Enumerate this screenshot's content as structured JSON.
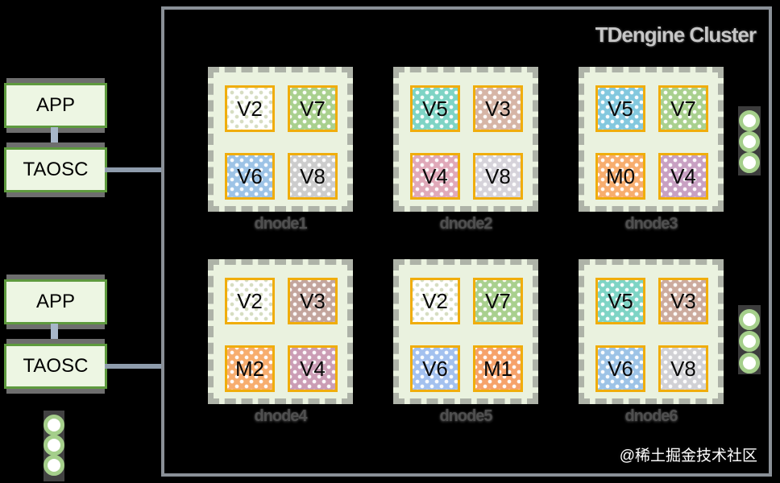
{
  "title": "TDengine Cluster",
  "watermark": "@稀土掘金技术社区",
  "left": {
    "pairs": [
      {
        "app": "APP",
        "taosc": "TAOSC"
      },
      {
        "app": "APP",
        "taosc": "TAOSC"
      }
    ]
  },
  "cluster": {
    "dnodes": [
      {
        "label": "dnode1",
        "cells": [
          {
            "label": "V2",
            "color": "#ffffff",
            "dot": "#d6ddc2"
          },
          {
            "label": "V7",
            "color": "#a9d08e"
          },
          {
            "label": "V6",
            "color": "#9dc3e6"
          },
          {
            "label": "V8",
            "color": "#cccccc"
          }
        ]
      },
      {
        "label": "dnode2",
        "cells": [
          {
            "label": "V5",
            "color": "#7ed4c5"
          },
          {
            "label": "V3",
            "color": "#d6b5a6"
          },
          {
            "label": "V4",
            "color": "#e0a9b9"
          },
          {
            "label": "V8",
            "color": "#d6d3da"
          }
        ]
      },
      {
        "label": "dnode3",
        "cells": [
          {
            "label": "V5",
            "color": "#83c8de"
          },
          {
            "label": "V7",
            "color": "#a9d08e"
          },
          {
            "label": "M0",
            "color": "#f7ad6e"
          },
          {
            "label": "V4",
            "color": "#c8a0c2"
          }
        ]
      },
      {
        "label": "dnode4",
        "cells": [
          {
            "label": "V2",
            "color": "#ffffff",
            "dot": "#d6ddc2"
          },
          {
            "label": "V3",
            "color": "#c3a59d"
          },
          {
            "label": "M2",
            "color": "#f7ad6e"
          },
          {
            "label": "V4",
            "color": "#cb9db5"
          }
        ]
      },
      {
        "label": "dnode5",
        "cells": [
          {
            "label": "V2",
            "color": "#ffffff",
            "dot": "#d6ddc2"
          },
          {
            "label": "V7",
            "color": "#a9d08e"
          },
          {
            "label": "V6",
            "color": "#a3c1ef"
          },
          {
            "label": "M1",
            "color": "#f6a26a"
          }
        ]
      },
      {
        "label": "dnode6",
        "cells": [
          {
            "label": "V5",
            "color": "#7ed4c5"
          },
          {
            "label": "V3",
            "color": "#ccab9e"
          },
          {
            "label": "V6",
            "color": "#9dc3e6"
          },
          {
            "label": "V8",
            "color": "#d1d1d5"
          }
        ]
      }
    ]
  },
  "icons": {
    "ellipsis_circle": "circle-dot",
    "meaning": "more nodes indicator"
  },
  "colors": {
    "background": "#000000",
    "cluster_border": "#8a9097",
    "dnode_bg": "#eaf2df",
    "dnode_border": "#aeb3a8",
    "vnode_border": "#f0ad0c",
    "green_box_bg": "#edf6e3",
    "green_box_border": "#5e9a3e",
    "connector": "#a7b6c9",
    "ellipsis_ring": "#a5cf8b"
  }
}
